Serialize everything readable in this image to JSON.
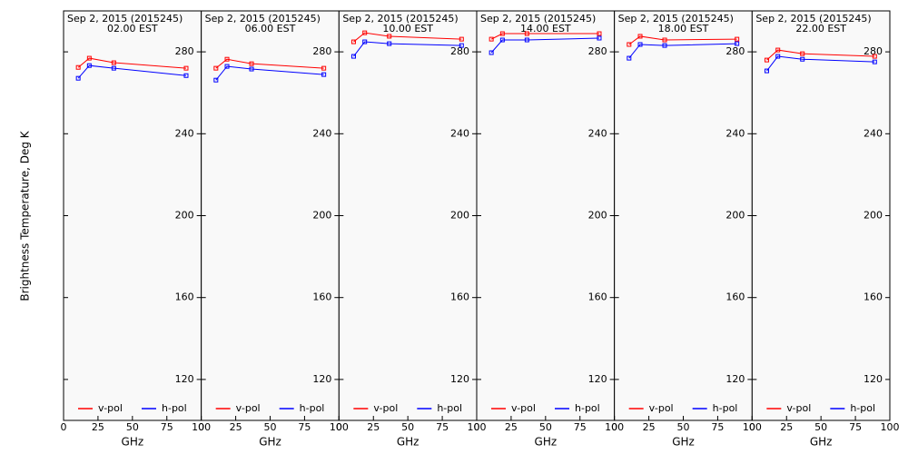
{
  "chart_data": [
    {
      "type": "line",
      "title": "Sep  2, 2015 (2015245)",
      "subtitle": "02.00 EST",
      "xlabel": "GHz",
      "ylabel": "Brightness Temperature, Deg K",
      "x": [
        10.65,
        18.7,
        36.5,
        89.0
      ],
      "xlim": [
        0,
        100
      ],
      "xticks": [
        0,
        25,
        50,
        75,
        100
      ],
      "ylim": [
        100,
        300
      ],
      "yticks": [
        120,
        160,
        200,
        240,
        280
      ],
      "series": [
        {
          "name": "v-pol",
          "color": "#ff0000",
          "values": [
            272.4,
            276.9,
            274.7,
            272.0
          ]
        },
        {
          "name": "h-pol",
          "color": "#0000ff",
          "values": [
            267.1,
            273.3,
            272.0,
            268.4
          ]
        }
      ]
    },
    {
      "type": "line",
      "title": "Sep  2, 2015 (2015245)",
      "subtitle": "06.00 EST",
      "xlabel": "GHz",
      "x": [
        10.65,
        18.7,
        36.5,
        89.0
      ],
      "xlim": [
        0,
        100
      ],
      "xticks": [
        0,
        25,
        50,
        75,
        100
      ],
      "ylim": [
        100,
        300
      ],
      "yticks": [
        120,
        160,
        200,
        240,
        280
      ],
      "series": [
        {
          "name": "v-pol",
          "color": "#ff0000",
          "values": [
            272.0,
            276.4,
            274.2,
            272.0
          ]
        },
        {
          "name": "h-pol",
          "color": "#0000ff",
          "values": [
            266.2,
            272.9,
            271.6,
            268.9
          ]
        }
      ]
    },
    {
      "type": "line",
      "title": "Sep  2, 2015 (2015245)",
      "subtitle": "10.00 EST",
      "xlabel": "GHz",
      "x": [
        10.65,
        18.7,
        36.5,
        89.0
      ],
      "xlim": [
        0,
        100
      ],
      "xticks": [
        0,
        25,
        50,
        75,
        100
      ],
      "ylim": [
        100,
        300
      ],
      "yticks": [
        120,
        160,
        200,
        240,
        280
      ],
      "series": [
        {
          "name": "v-pol",
          "color": "#ff0000",
          "values": [
            284.9,
            289.3,
            287.6,
            286.2
          ]
        },
        {
          "name": "h-pol",
          "color": "#0000ff",
          "values": [
            277.8,
            284.9,
            284.0,
            283.1
          ]
        }
      ]
    },
    {
      "type": "line",
      "title": "Sep  2, 2015 (2015245)",
      "subtitle": "14.00 EST",
      "xlabel": "GHz",
      "x": [
        10.65,
        18.7,
        36.5,
        89.0
      ],
      "xlim": [
        0,
        100
      ],
      "xticks": [
        0,
        25,
        50,
        75,
        100
      ],
      "ylim": [
        100,
        300
      ],
      "yticks": [
        120,
        160,
        200,
        240,
        280
      ],
      "series": [
        {
          "name": "v-pol",
          "color": "#ff0000",
          "values": [
            286.2,
            288.9,
            288.9,
            288.9
          ]
        },
        {
          "name": "h-pol",
          "color": "#0000ff",
          "values": [
            279.6,
            285.8,
            285.8,
            286.7
          ]
        }
      ]
    },
    {
      "type": "line",
      "title": "Sep  2, 2015 (2015245)",
      "subtitle": "18.00 EST",
      "xlabel": "GHz",
      "x": [
        10.65,
        18.7,
        36.5,
        89.0
      ],
      "xlim": [
        0,
        100
      ],
      "xticks": [
        0,
        25,
        50,
        75,
        100
      ],
      "ylim": [
        100,
        300
      ],
      "yticks": [
        120,
        160,
        200,
        240,
        280
      ],
      "series": [
        {
          "name": "v-pol",
          "color": "#ff0000",
          "values": [
            283.6,
            287.6,
            285.8,
            286.2
          ]
        },
        {
          "name": "h-pol",
          "color": "#0000ff",
          "values": [
            276.9,
            283.6,
            283.1,
            284.0
          ]
        }
      ]
    },
    {
      "type": "line",
      "title": "Sep  2, 2015 (2015245)",
      "subtitle": "22.00 EST",
      "xlabel": "GHz",
      "x": [
        10.65,
        18.7,
        36.5,
        89.0
      ],
      "xlim": [
        0,
        100
      ],
      "xticks": [
        0,
        25,
        50,
        75,
        100
      ],
      "ylim": [
        100,
        300
      ],
      "yticks": [
        120,
        160,
        200,
        240,
        280
      ],
      "series": [
        {
          "name": "v-pol",
          "color": "#ff0000",
          "values": [
            276.0,
            280.9,
            279.1,
            277.8
          ]
        },
        {
          "name": "h-pol",
          "color": "#0000ff",
          "values": [
            270.7,
            277.8,
            276.4,
            275.1
          ]
        }
      ]
    }
  ]
}
